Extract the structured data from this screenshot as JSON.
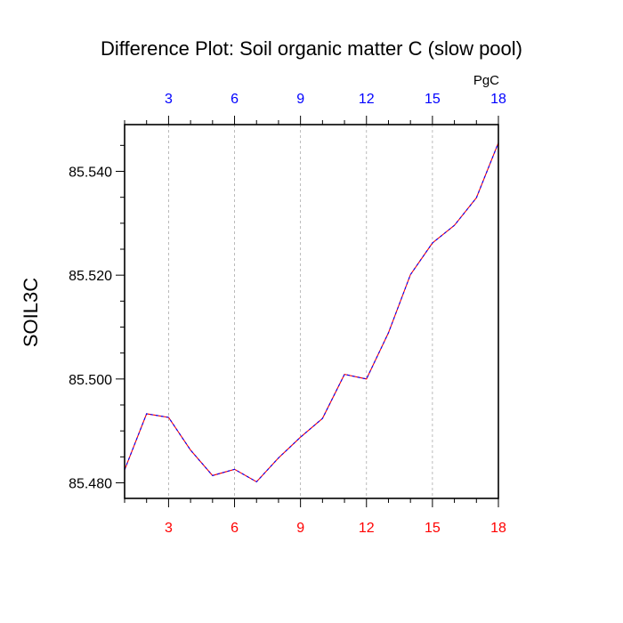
{
  "chart_data": {
    "type": "line",
    "title": "Difference Plot: Soil organic matter C (slow pool)",
    "units": "PgC",
    "ylabel": "SOIL3C",
    "xlabel": "",
    "xlim": [
      1,
      18
    ],
    "ylim": [
      85.477,
      85.549
    ],
    "x_ticks": [
      "3",
      "6",
      "9",
      "12",
      "15",
      "18"
    ],
    "y_ticks": [
      "85.480",
      "85.500",
      "85.520",
      "85.540"
    ],
    "grid": "vertical dashed at major x ticks",
    "colors": {
      "bottom_axis_labels": "#ff0000",
      "top_axis_labels": "#0000ff",
      "series_line_1": "#ff0000",
      "series_line_2": "#0000ff",
      "grid": "#aaaaaa"
    },
    "series": [
      {
        "x": [
          1,
          2,
          3,
          4,
          5,
          6,
          7,
          8,
          9,
          10,
          11,
          12,
          13,
          14,
          15,
          16,
          17,
          18
        ],
        "values": [
          85.4825,
          85.4933,
          85.4926,
          85.4863,
          85.4814,
          85.4826,
          85.4802,
          85.4848,
          85.4888,
          85.4924,
          85.5009,
          85.5,
          85.5089,
          85.5201,
          85.5262,
          85.5296,
          85.5349,
          85.5455
        ]
      }
    ]
  }
}
